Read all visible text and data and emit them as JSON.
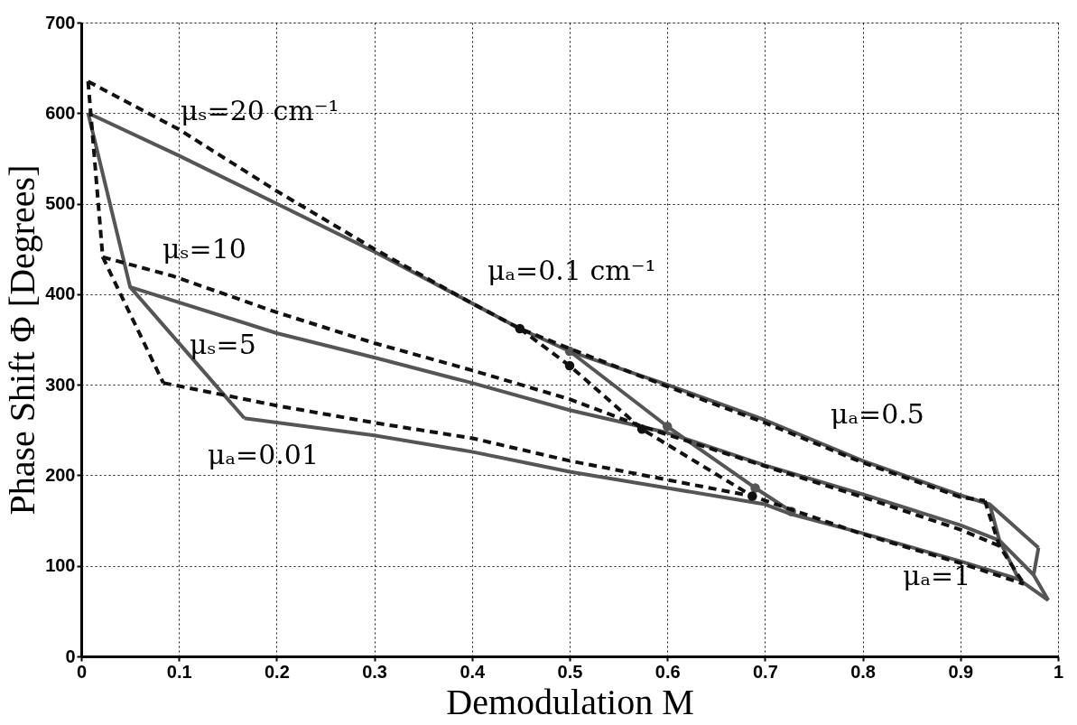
{
  "chart_data": {
    "type": "line",
    "xlabel": "Demodulation M",
    "ylabel": "Phase Shift Φ [Degrees]",
    "xlim": [
      0,
      1
    ],
    "xticks": [
      0,
      0.1,
      0.2,
      0.3,
      0.4,
      0.5,
      0.6,
      0.7,
      0.8,
      0.9,
      1
    ],
    "ylim": [
      0,
      700
    ],
    "yticks": [
      0,
      100,
      200,
      300,
      400,
      500,
      600,
      700
    ],
    "grid": true,
    "series": [
      {
        "color": "#555555",
        "line_style": "solid",
        "marker": "none",
        "x": [
          0.007,
          0.1,
          0.2,
          0.3,
          0.4,
          0.449,
          0.5,
          0.6,
          0.7,
          0.8,
          0.9,
          0.93,
          0.98
        ],
        "values": [
          600,
          553,
          500,
          447,
          390,
          362,
          337,
          300,
          261,
          216,
          178,
          168,
          120
        ]
      },
      {
        "color": "#555555",
        "line_style": "solid",
        "marker": "none",
        "x": [
          0.05,
          0.2,
          0.3,
          0.4,
          0.5,
          0.6,
          0.7,
          0.8,
          0.9,
          0.94,
          0.975
        ],
        "values": [
          408,
          357,
          330,
          302,
          272,
          247,
          211,
          179,
          145,
          128,
          90
        ]
      },
      {
        "color": "#555555",
        "line_style": "solid",
        "marker": "none",
        "x": [
          0.167,
          0.3,
          0.4,
          0.5,
          0.6,
          0.7,
          0.727,
          0.8,
          0.9,
          0.96,
          0.99
        ],
        "values": [
          263,
          244,
          226,
          204,
          186,
          168,
          157,
          136,
          105,
          85,
          62
        ]
      },
      {
        "color": "#555555",
        "line_style": "solid",
        "marker": "none",
        "x": [
          0.007,
          0.05,
          0.167
        ],
        "values": [
          600,
          408,
          263
        ]
      },
      {
        "color": "#555555",
        "line_style": "solid",
        "marker": "circle",
        "x": [
          0.5,
          0.6,
          0.69,
          0.727
        ],
        "values": [
          337,
          254,
          186,
          160
        ]
      },
      {
        "color": "#555555",
        "line_style": "solid",
        "marker": "none",
        "x": [
          0.93,
          0.94,
          0.96
        ],
        "values": [
          168,
          128,
          85
        ]
      },
      {
        "color": "#555555",
        "line_style": "solid",
        "marker": "none",
        "x": [
          0.98,
          0.975,
          0.99
        ],
        "values": [
          120,
          90,
          62
        ]
      },
      {
        "color": "#111111",
        "line_style": "dashed",
        "marker": "none",
        "x": [
          0.007,
          0.1,
          0.2,
          0.3,
          0.4,
          0.449,
          0.5,
          0.6,
          0.7,
          0.8,
          0.9,
          0.925
        ],
        "values": [
          635,
          582,
          514,
          450,
          390,
          362,
          340,
          298,
          258,
          214,
          176,
          172
        ]
      },
      {
        "color": "#111111",
        "line_style": "dashed",
        "marker": "none",
        "x": [
          0.022,
          0.094,
          0.2,
          0.3,
          0.4,
          0.5,
          0.574,
          0.6,
          0.7,
          0.8,
          0.9,
          0.94
        ],
        "values": [
          441,
          420,
          380,
          346,
          316,
          284,
          254,
          245,
          210,
          176,
          140,
          122
        ]
      },
      {
        "color": "#111111",
        "line_style": "dashed",
        "marker": "none",
        "x": [
          0.084,
          0.2,
          0.3,
          0.4,
          0.5,
          0.6,
          0.687,
          0.8,
          0.9,
          0.965
        ],
        "values": [
          302,
          277,
          258,
          241,
          216,
          195,
          177,
          135,
          103,
          80
        ]
      },
      {
        "color": "#111111",
        "line_style": "dashed",
        "marker": "none",
        "x": [
          0.007,
          0.022,
          0.084
        ],
        "values": [
          635,
          441,
          302
        ]
      },
      {
        "color": "#111111",
        "line_style": "dashed",
        "marker": "circle",
        "x": [
          0.449,
          0.5,
          0.574,
          0.687
        ],
        "values": [
          362,
          321,
          251,
          177
        ]
      },
      {
        "color": "#111111",
        "line_style": "dashed",
        "marker": "none",
        "x": [
          0.925,
          0.94,
          0.965
        ],
        "values": [
          172,
          122,
          80
        ]
      }
    ],
    "annotations": [
      "μₛ=20 cm⁻¹",
      "μₛ=10",
      "μₛ=5",
      "μₐ=0.01",
      "μₐ=0.1 cm⁻¹",
      "μₐ=0.5",
      "μₐ=1"
    ]
  }
}
